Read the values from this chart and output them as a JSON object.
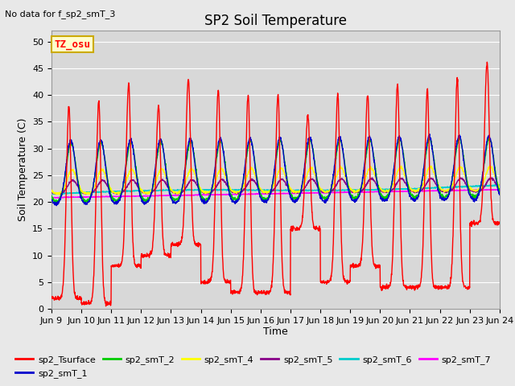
{
  "title": "SP2 Soil Temperature",
  "ylabel": "Soil Temperature (C)",
  "xlabel": "Time",
  "note": "No data for f_sp2_smT_3",
  "tz_label": "TZ_osu",
  "ylim": [
    0,
    52
  ],
  "yticks": [
    0,
    5,
    10,
    15,
    20,
    25,
    30,
    35,
    40,
    45,
    50
  ],
  "x_start": 9.0,
  "x_end": 24.0,
  "xtick_positions": [
    9,
    10,
    11,
    12,
    13,
    14,
    15,
    16,
    17,
    18,
    19,
    20,
    21,
    22,
    23,
    24
  ],
  "xtick_labels": [
    "Jun 9",
    "Jun 10",
    "Jun 11",
    "Jun 12",
    "Jun 13",
    "Jun 14",
    "Jun 15",
    "Jun 16",
    "Jun 17",
    "Jun 18",
    "Jun 19",
    "Jun 20",
    "Jun 21",
    "Jun 22",
    "Jun 23",
    "Jun 24"
  ],
  "series_colors": {
    "sp2_Tsurface": "#ff0000",
    "sp2_smT_1": "#0000cc",
    "sp2_smT_2": "#00cc00",
    "sp2_smT_4": "#ffff00",
    "sp2_smT_5": "#880088",
    "sp2_smT_6": "#00cccc",
    "sp2_smT_7": "#ff00ff"
  },
  "fig_bg_color": "#e8e8e8",
  "plot_bg_color": "#d8d8d8",
  "grid_color": "#ffffff",
  "title_fontsize": 12,
  "label_fontsize": 9,
  "tick_fontsize": 8,
  "note_fontsize": 8,
  "legend_fontsize": 8
}
